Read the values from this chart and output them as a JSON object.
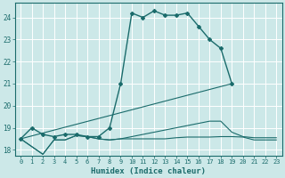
{
  "title": "",
  "xlabel": "Humidex (Indice chaleur)",
  "bg_color": "#cce8e8",
  "grid_color": "#ffffff",
  "line_color": "#1a6b6b",
  "xlim": [
    -0.5,
    23.5
  ],
  "ylim": [
    17.75,
    24.65
  ],
  "yticks": [
    18,
    19,
    20,
    21,
    22,
    23,
    24
  ],
  "xticks": [
    0,
    1,
    2,
    3,
    4,
    5,
    6,
    7,
    8,
    9,
    10,
    11,
    12,
    13,
    14,
    15,
    16,
    17,
    18,
    19,
    20,
    21,
    22,
    23
  ],
  "main_curve_x": [
    0,
    1,
    2,
    3,
    4,
    5,
    6,
    7,
    8,
    9,
    10,
    11,
    12,
    13,
    14,
    15,
    16,
    17,
    18,
    19
  ],
  "main_curve_y": [
    18.5,
    19.0,
    18.7,
    18.6,
    18.7,
    18.7,
    18.6,
    18.6,
    19.0,
    21.0,
    24.2,
    24.0,
    24.3,
    24.1,
    24.1,
    24.2,
    23.6,
    23.0,
    22.6,
    21.0
  ],
  "straight_line_x": [
    0,
    19
  ],
  "straight_line_y": [
    18.5,
    21.0
  ],
  "flat_line_x": [
    0,
    2,
    3,
    4,
    5,
    6,
    7,
    8,
    9,
    10,
    11,
    12,
    13,
    14,
    15,
    16,
    17,
    18,
    19,
    20,
    21,
    22,
    23
  ],
  "flat_line_y": [
    18.5,
    17.8,
    18.45,
    18.45,
    18.65,
    18.6,
    18.5,
    18.45,
    18.5,
    18.5,
    18.5,
    18.5,
    18.5,
    18.55,
    18.58,
    18.58,
    18.58,
    18.6,
    18.6,
    18.58,
    18.45,
    18.45,
    18.45
  ],
  "rising_line_x": [
    0,
    2,
    3,
    4,
    5,
    6,
    7,
    8,
    9,
    10,
    11,
    12,
    13,
    14,
    15,
    16,
    17,
    18,
    19,
    20,
    21,
    22,
    23
  ],
  "rising_line_y": [
    18.5,
    17.8,
    18.45,
    18.45,
    18.65,
    18.6,
    18.5,
    18.45,
    18.5,
    18.6,
    18.7,
    18.8,
    18.9,
    19.0,
    19.1,
    19.2,
    19.3,
    19.3,
    18.8,
    18.6,
    18.55,
    18.55,
    18.55
  ]
}
